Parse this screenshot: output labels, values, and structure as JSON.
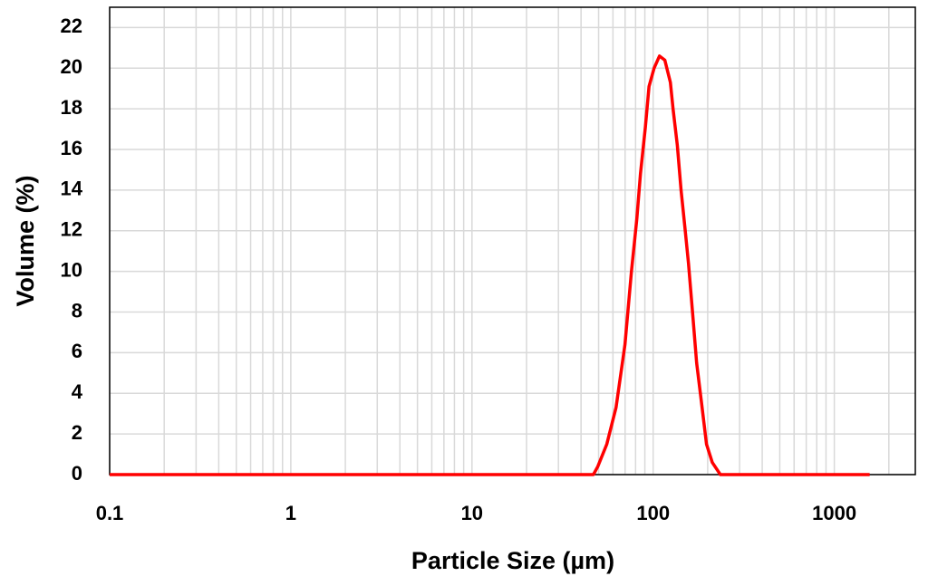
{
  "chart_data": {
    "type": "line",
    "x_label": "Particle Size (µm)",
    "y_label": "Volume (%)",
    "x_scale": "log",
    "grid": true,
    "xlim": [
      0.1,
      2800
    ],
    "ylim": [
      0,
      23
    ],
    "xticks": [
      0.1,
      1,
      10,
      100,
      1000
    ],
    "xminorticks": [
      0.2,
      0.3,
      0.4,
      0.5,
      0.6,
      0.7,
      0.8,
      0.9,
      2,
      3,
      4,
      5,
      6,
      7,
      8,
      9,
      20,
      30,
      40,
      50,
      60,
      70,
      80,
      90,
      200,
      300,
      400,
      500,
      600,
      700,
      800,
      900,
      2000
    ],
    "yticks": [
      0,
      2,
      4,
      6,
      8,
      10,
      12,
      14,
      16,
      18,
      20,
      22
    ],
    "series": [
      {
        "color": "#ff0000",
        "x": [
          0.1,
          46.8,
          49.5,
          55.5,
          62.4,
          69.9,
          75.9,
          81.3,
          85.1,
          90.6,
          94.9,
          101.2,
          108.4,
          116,
          124.5,
          128.8,
          136,
          142.6,
          149.6,
          156.7,
          166,
          173.8,
          184,
          197,
          212,
          235,
          1567
        ],
        "values": [
          0,
          0,
          0.4,
          1.5,
          3.3,
          6.4,
          10,
          12.6,
          14.8,
          17.1,
          19.1,
          20,
          20.6,
          20.4,
          19.3,
          18,
          16.2,
          14,
          12.2,
          10.4,
          7.7,
          5.5,
          3.7,
          1.5,
          0.6,
          0,
          0
        ]
      }
    ]
  }
}
